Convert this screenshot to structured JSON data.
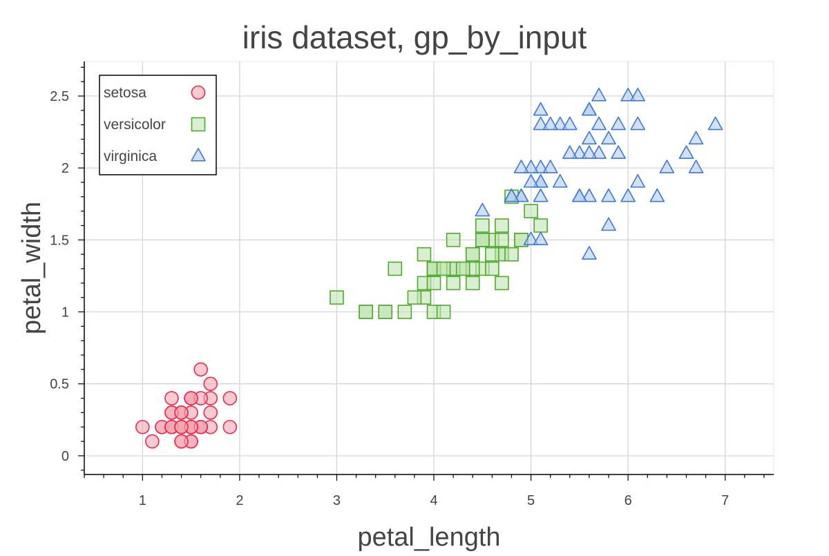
{
  "chart_data": {
    "type": "scatter",
    "title": "iris dataset, gp_by_input",
    "xlabel": "petal_length",
    "ylabel": "petal_width",
    "xlim": [
      0.4,
      7.5
    ],
    "ylim": [
      -0.13,
      2.74
    ],
    "xticks": [
      "1",
      "2",
      "3",
      "4",
      "5",
      "6",
      "7"
    ],
    "yticks": [
      "0",
      "0.5",
      "1",
      "1.5",
      "2",
      "2.5"
    ],
    "grid": true,
    "legend_position": "top-left",
    "series": [
      {
        "name": "setosa",
        "marker": "circle",
        "color": "#e8294a",
        "fill": "#f5a6b3",
        "points": [
          [
            1.4,
            0.2
          ],
          [
            1.4,
            0.2
          ],
          [
            1.3,
            0.2
          ],
          [
            1.5,
            0.2
          ],
          [
            1.4,
            0.2
          ],
          [
            1.7,
            0.4
          ],
          [
            1.4,
            0.3
          ],
          [
            1.5,
            0.2
          ],
          [
            1.4,
            0.2
          ],
          [
            1.5,
            0.1
          ],
          [
            1.5,
            0.2
          ],
          [
            1.6,
            0.2
          ],
          [
            1.4,
            0.1
          ],
          [
            1.1,
            0.1
          ],
          [
            1.2,
            0.2
          ],
          [
            1.5,
            0.4
          ],
          [
            1.3,
            0.4
          ],
          [
            1.4,
            0.3
          ],
          [
            1.7,
            0.3
          ],
          [
            1.5,
            0.3
          ],
          [
            1.7,
            0.2
          ],
          [
            1.5,
            0.4
          ],
          [
            1.0,
            0.2
          ],
          [
            1.7,
            0.5
          ],
          [
            1.9,
            0.2
          ],
          [
            1.6,
            0.2
          ],
          [
            1.6,
            0.4
          ],
          [
            1.5,
            0.2
          ],
          [
            1.4,
            0.2
          ],
          [
            1.6,
            0.2
          ],
          [
            1.6,
            0.2
          ],
          [
            1.5,
            0.4
          ],
          [
            1.5,
            0.1
          ],
          [
            1.4,
            0.2
          ],
          [
            1.5,
            0.2
          ],
          [
            1.2,
            0.2
          ],
          [
            1.3,
            0.2
          ],
          [
            1.4,
            0.1
          ],
          [
            1.3,
            0.2
          ],
          [
            1.5,
            0.2
          ],
          [
            1.3,
            0.3
          ],
          [
            1.3,
            0.3
          ],
          [
            1.3,
            0.2
          ],
          [
            1.6,
            0.6
          ],
          [
            1.9,
            0.4
          ],
          [
            1.4,
            0.3
          ],
          [
            1.6,
            0.2
          ],
          [
            1.4,
            0.2
          ],
          [
            1.5,
            0.2
          ],
          [
            1.4,
            0.2
          ]
        ]
      },
      {
        "name": "versicolor",
        "marker": "square",
        "color": "#4eaa2c",
        "fill": "#c2e4b2",
        "points": [
          [
            4.7,
            1.4
          ],
          [
            4.5,
            1.5
          ],
          [
            4.9,
            1.5
          ],
          [
            4.0,
            1.3
          ],
          [
            4.6,
            1.5
          ],
          [
            4.5,
            1.3
          ],
          [
            4.7,
            1.6
          ],
          [
            3.3,
            1.0
          ],
          [
            4.6,
            1.3
          ],
          [
            3.9,
            1.4
          ],
          [
            3.5,
            1.0
          ],
          [
            4.2,
            1.5
          ],
          [
            4.0,
            1.0
          ],
          [
            4.7,
            1.4
          ],
          [
            3.6,
            1.3
          ],
          [
            4.4,
            1.4
          ],
          [
            4.5,
            1.5
          ],
          [
            4.1,
            1.0
          ],
          [
            4.5,
            1.5
          ],
          [
            3.9,
            1.1
          ],
          [
            4.8,
            1.8
          ],
          [
            4.0,
            1.3
          ],
          [
            4.9,
            1.5
          ],
          [
            4.7,
            1.2
          ],
          [
            4.3,
            1.3
          ],
          [
            4.4,
            1.4
          ],
          [
            4.8,
            1.4
          ],
          [
            5.0,
            1.7
          ],
          [
            4.5,
            1.5
          ],
          [
            3.5,
            1.0
          ],
          [
            3.8,
            1.1
          ],
          [
            3.7,
            1.0
          ],
          [
            3.9,
            1.2
          ],
          [
            5.1,
            1.6
          ],
          [
            4.5,
            1.5
          ],
          [
            4.5,
            1.6
          ],
          [
            4.7,
            1.5
          ],
          [
            4.4,
            1.3
          ],
          [
            4.1,
            1.3
          ],
          [
            4.0,
            1.3
          ],
          [
            4.4,
            1.2
          ],
          [
            4.6,
            1.4
          ],
          [
            4.0,
            1.2
          ],
          [
            3.3,
            1.0
          ],
          [
            4.2,
            1.3
          ],
          [
            4.2,
            1.2
          ],
          [
            4.2,
            1.3
          ],
          [
            4.3,
            1.3
          ],
          [
            3.0,
            1.1
          ],
          [
            4.1,
            1.3
          ]
        ]
      },
      {
        "name": "virginica",
        "marker": "triangle",
        "color": "#3c78d8",
        "fill": "#b4cdf0",
        "points": [
          [
            6.0,
            2.5
          ],
          [
            5.1,
            1.9
          ],
          [
            5.9,
            2.1
          ],
          [
            5.6,
            1.8
          ],
          [
            5.8,
            2.2
          ],
          [
            6.6,
            2.1
          ],
          [
            4.5,
            1.7
          ],
          [
            6.3,
            1.8
          ],
          [
            5.8,
            1.8
          ],
          [
            6.1,
            2.5
          ],
          [
            5.1,
            2.0
          ],
          [
            5.3,
            1.9
          ],
          [
            5.5,
            2.1
          ],
          [
            5.0,
            2.0
          ],
          [
            5.1,
            2.4
          ],
          [
            5.3,
            2.3
          ],
          [
            5.5,
            1.8
          ],
          [
            6.7,
            2.2
          ],
          [
            6.9,
            2.3
          ],
          [
            5.0,
            1.5
          ],
          [
            5.7,
            2.3
          ],
          [
            4.9,
            2.0
          ],
          [
            6.7,
            2.0
          ],
          [
            4.9,
            1.8
          ],
          [
            5.7,
            2.1
          ],
          [
            6.0,
            1.8
          ],
          [
            4.8,
            1.8
          ],
          [
            4.9,
            1.8
          ],
          [
            5.6,
            2.1
          ],
          [
            5.8,
            1.6
          ],
          [
            6.1,
            1.9
          ],
          [
            6.4,
            2.0
          ],
          [
            5.6,
            2.2
          ],
          [
            5.1,
            1.5
          ],
          [
            5.6,
            1.4
          ],
          [
            6.1,
            2.3
          ],
          [
            5.6,
            2.4
          ],
          [
            5.5,
            1.8
          ],
          [
            4.8,
            1.8
          ],
          [
            5.4,
            2.1
          ],
          [
            5.6,
            2.4
          ],
          [
            5.1,
            2.3
          ],
          [
            5.1,
            1.9
          ],
          [
            5.9,
            2.3
          ],
          [
            5.7,
            2.5
          ],
          [
            5.2,
            2.3
          ],
          [
            5.0,
            1.9
          ],
          [
            5.2,
            2.0
          ],
          [
            5.4,
            2.3
          ],
          [
            5.1,
            1.8
          ]
        ]
      }
    ]
  }
}
